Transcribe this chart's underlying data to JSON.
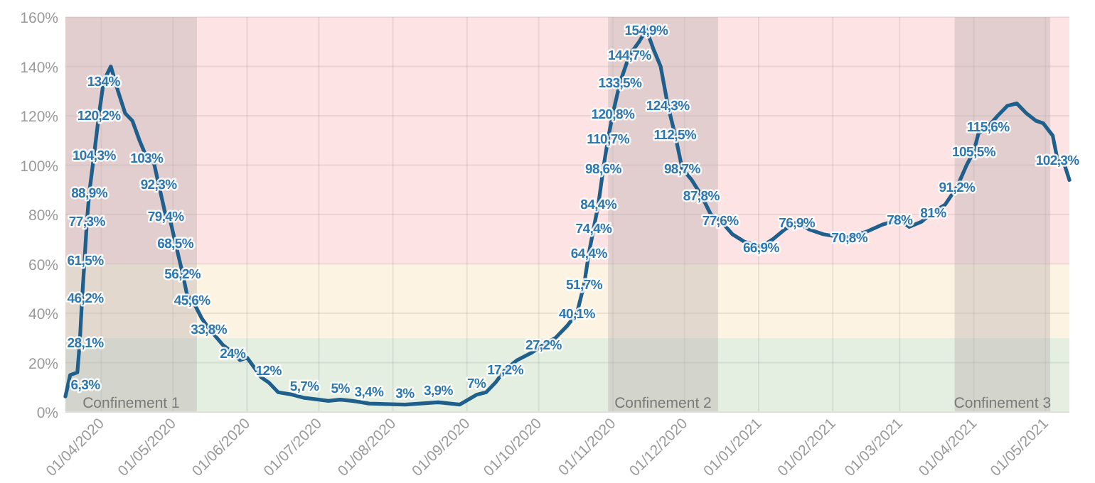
{
  "chart_data": {
    "type": "line",
    "x": [
      "2020-03-17",
      "2020-03-19",
      "2020-03-22",
      "2020-03-23",
      "2020-03-24",
      "2020-03-25",
      "2020-03-26",
      "2020-03-27",
      "2020-03-29",
      "2020-03-31",
      "2020-04-02",
      "2020-04-05",
      "2020-04-08",
      "2020-04-11",
      "2020-04-14",
      "2020-04-17",
      "2020-04-20",
      "2020-04-23",
      "2020-04-25",
      "2020-04-28",
      "2020-04-30",
      "2020-05-02",
      "2020-05-05",
      "2020-05-07",
      "2020-05-09",
      "2020-05-13",
      "2020-05-16",
      "2020-05-22",
      "2020-05-26",
      "2020-05-29",
      "2020-06-01",
      "2020-06-04",
      "2020-06-07",
      "2020-06-10",
      "2020-06-14",
      "2020-06-20",
      "2020-06-25",
      "2020-07-01",
      "2020-07-05",
      "2020-07-10",
      "2020-07-15",
      "2020-07-22",
      "2020-07-29",
      "2020-08-06",
      "2020-08-20",
      "2020-08-29",
      "2020-09-05",
      "2020-09-09",
      "2020-09-13",
      "2020-09-17",
      "2020-09-22",
      "2020-09-28",
      "2020-10-03",
      "2020-10-08",
      "2020-10-13",
      "2020-10-17",
      "2020-10-20",
      "2020-10-22",
      "2020-10-24",
      "2020-10-26",
      "2020-10-28",
      "2020-10-30",
      "2020-11-01",
      "2020-11-04",
      "2020-11-08",
      "2020-11-12",
      "2020-11-15",
      "2020-11-18",
      "2020-11-21",
      "2020-11-24",
      "2020-11-27",
      "2020-11-30",
      "2020-12-04",
      "2020-12-08",
      "2020-12-12",
      "2020-12-16",
      "2020-12-21",
      "2020-12-26",
      "2021-01-02",
      "2021-01-07",
      "2021-01-12",
      "2021-01-17",
      "2021-01-22",
      "2021-01-28",
      "2021-02-03",
      "2021-02-08",
      "2021-02-15",
      "2021-02-22",
      "2021-03-01",
      "2021-03-05",
      "2021-03-10",
      "2021-03-15",
      "2021-03-20",
      "2021-03-25",
      "2021-03-29",
      "2021-04-01",
      "2021-04-03",
      "2021-04-07",
      "2021-04-11",
      "2021-04-15",
      "2021-04-19",
      "2021-04-23",
      "2021-04-27",
      "2021-04-30",
      "2021-05-04",
      "2021-05-06",
      "2021-05-09",
      "2021-05-11"
    ],
    "series": [
      {
        "color": "#1f5f8b",
        "values": [
          6.3,
          15,
          16,
          28.1,
          46.2,
          61.5,
          77.3,
          88.9,
          104.3,
          120.2,
          134,
          140,
          130,
          121,
          118,
          110,
          103,
          101,
          92.3,
          79.4,
          77,
          68.5,
          56.2,
          47,
          45.6,
          38,
          33.8,
          27,
          24,
          21,
          22,
          18,
          14,
          12,
          8,
          7,
          5.7,
          5,
          4.5,
          5,
          4.5,
          3.4,
          3.2,
          3,
          3.9,
          3,
          7,
          8,
          12,
          17.2,
          21,
          24,
          27.2,
          30,
          35,
          40.1,
          51.7,
          64.4,
          74.4,
          84.4,
          98.6,
          110.7,
          120.8,
          133.5,
          144.7,
          150,
          154.9,
          147,
          140,
          124.3,
          112.5,
          98.7,
          94,
          87.8,
          80,
          77.6,
          72,
          69,
          66.9,
          70,
          74,
          76.9,
          74,
          72,
          71,
          70.8,
          73,
          76,
          78,
          75,
          77,
          81,
          84,
          91.2,
          100,
          105.5,
          113,
          115.6,
          120,
          124,
          125,
          121,
          118,
          117,
          112,
          102.3,
          100,
          94
        ],
        "value_labels": [
          "6,3%",
          null,
          null,
          "28,1%",
          "46,2%",
          "61,5%",
          "77,3%",
          "88,9%",
          "104,3%",
          "120,2%",
          "134%",
          null,
          null,
          null,
          null,
          null,
          "103%",
          null,
          "92,3%",
          "79,4%",
          null,
          "68,5%",
          "56,2%",
          null,
          "45,6%",
          null,
          "33,8%",
          null,
          "24%",
          null,
          null,
          null,
          null,
          "12%",
          null,
          null,
          "5,7%",
          null,
          null,
          "5%",
          null,
          "3,4%",
          null,
          "3%",
          "3,9%",
          null,
          "7%",
          null,
          null,
          "17,2%",
          null,
          null,
          "27,2%",
          null,
          null,
          "40,1%",
          "51,7%",
          "64,4%",
          "74,4%",
          "84,4%",
          "98,6%",
          "110,7%",
          "120,8%",
          "133,5%",
          "144,7%",
          null,
          "154,9%",
          null,
          null,
          "124,3%",
          "112,5%",
          "98,7%",
          null,
          "87,8%",
          null,
          "77,6%",
          null,
          null,
          "66,9%",
          null,
          null,
          "76,9%",
          null,
          null,
          null,
          "70,8%",
          null,
          null,
          "78%",
          null,
          null,
          "81%",
          null,
          "91,2%",
          null,
          "105,5%",
          null,
          "115,6%",
          null,
          null,
          null,
          null,
          null,
          null,
          null,
          "102,3%",
          null,
          null
        ]
      }
    ],
    "xlim": [
      "2020-03-17",
      "2021-05-11"
    ],
    "xticks": [
      {
        "value": "2020-04-01",
        "label": "01/04/2020"
      },
      {
        "value": "2020-05-01",
        "label": "01/05/2020"
      },
      {
        "value": "2020-06-01",
        "label": "01/06/2020"
      },
      {
        "value": "2020-07-01",
        "label": "01/07/2020"
      },
      {
        "value": "2020-08-01",
        "label": "01/08/2020"
      },
      {
        "value": "2020-09-01",
        "label": "01/09/2020"
      },
      {
        "value": "2020-10-01",
        "label": "01/10/2020"
      },
      {
        "value": "2020-11-01",
        "label": "01/11/2020"
      },
      {
        "value": "2020-12-01",
        "label": "01/12/2020"
      },
      {
        "value": "2021-01-01",
        "label": "01/01/2021"
      },
      {
        "value": "2021-02-01",
        "label": "01/02/2021"
      },
      {
        "value": "2021-03-01",
        "label": "01/03/2021"
      },
      {
        "value": "2021-04-01",
        "label": "01/04/2021"
      },
      {
        "value": "2021-05-01",
        "label": "01/05/2021"
      }
    ],
    "ylim": [
      0,
      160
    ],
    "yticks": [
      {
        "value": 0,
        "label": "0%"
      },
      {
        "value": 20,
        "label": "20%"
      },
      {
        "value": 40,
        "label": "40%"
      },
      {
        "value": 60,
        "label": "60%"
      },
      {
        "value": 80,
        "label": "80%"
      },
      {
        "value": 100,
        "label": "100%"
      },
      {
        "value": 120,
        "label": "120%"
      },
      {
        "value": 140,
        "label": "140%"
      },
      {
        "value": 160,
        "label": "160%"
      }
    ],
    "grid": true,
    "line_style": "solid",
    "marker": "none",
    "bands": [
      {
        "axis": "y",
        "from": 0,
        "to": 30,
        "color": "#e4efe2"
      },
      {
        "axis": "y",
        "from": 30,
        "to": 60,
        "color": "#fdf3e3"
      },
      {
        "axis": "y",
        "from": 60,
        "to": 160,
        "color": "#fde3e3"
      },
      {
        "axis": "x",
        "from": "2020-03-17",
        "to": "2020-05-11",
        "label": "Confinement 1",
        "color": "#b8aeae"
      },
      {
        "axis": "x",
        "from": "2020-10-30",
        "to": "2020-12-15",
        "label": "Confinement 2",
        "color": "#b8aeae"
      },
      {
        "axis": "x",
        "from": "2021-03-24",
        "to": "2021-05-03",
        "label": "Confinement 3",
        "color": "#b8aeae"
      }
    ]
  }
}
